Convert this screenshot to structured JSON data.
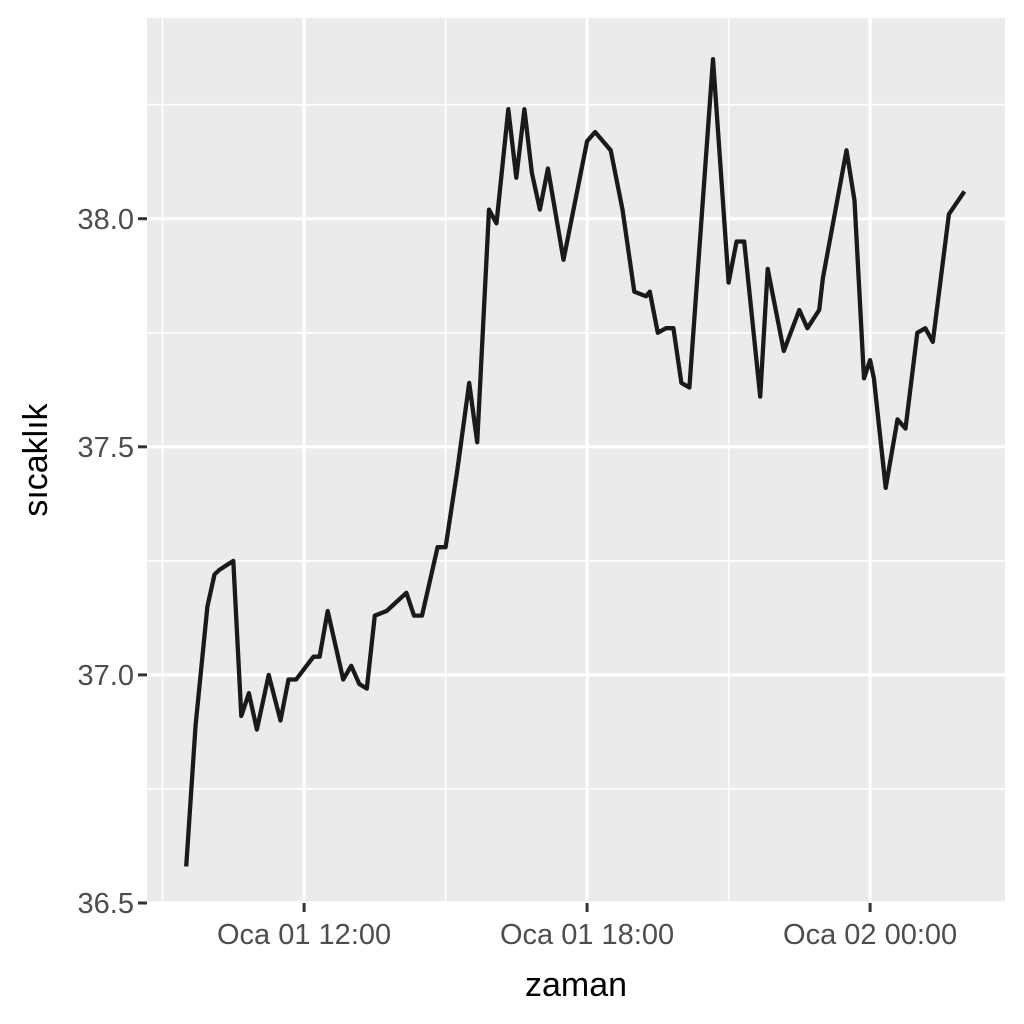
{
  "style": {
    "outer_bg": "#FFFFFF",
    "panel_bg": "#EBEBEB",
    "grid_color": "#FFFFFF",
    "line_color": "#1A1A1A",
    "tick_mark_color": "#333333",
    "tick_label_color": "#4D4D4D",
    "axis_title_color": "#000000"
  },
  "chart_data": {
    "type": "line",
    "title": "",
    "xlabel": "zaman",
    "ylabel": "sıcaklık",
    "legend": "none",
    "grid": "major+minor",
    "x_axis": {
      "time_origin": "Oca 01 00:00",
      "tick_labels": [
        "Oca 01 12:00",
        "Oca 01 18:00",
        "Oca 02 00:00"
      ],
      "tick_hours": [
        12,
        18,
        24
      ],
      "minor_tick_hours": [
        9,
        15,
        21
      ],
      "range_hours": [
        8.67,
        26.86
      ]
    },
    "y_axis": {
      "tick_labels": [
        "36.5",
        "37.0",
        "37.5",
        "38.0"
      ],
      "tick_values": [
        36.5,
        37.0,
        37.5,
        38.0
      ],
      "minor_tick_values": [
        36.75,
        37.25,
        37.75,
        38.25
      ],
      "range": [
        36.5,
        38.44
      ]
    },
    "series": [
      {
        "name": "sıcaklık",
        "color": "#1A1A1A",
        "points_hour_value": [
          [
            9.5,
            36.58
          ],
          [
            9.7,
            36.89
          ],
          [
            9.95,
            37.15
          ],
          [
            10.1,
            37.22
          ],
          [
            10.2,
            37.23
          ],
          [
            10.35,
            37.24
          ],
          [
            10.5,
            37.25
          ],
          [
            10.67,
            36.91
          ],
          [
            10.83,
            36.96
          ],
          [
            11.0,
            36.88
          ],
          [
            11.25,
            37.0
          ],
          [
            11.5,
            36.9
          ],
          [
            11.67,
            36.99
          ],
          [
            11.83,
            36.99
          ],
          [
            12.2,
            37.04
          ],
          [
            12.33,
            37.04
          ],
          [
            12.5,
            37.14
          ],
          [
            12.83,
            36.99
          ],
          [
            13.0,
            37.02
          ],
          [
            13.17,
            36.98
          ],
          [
            13.33,
            36.97
          ],
          [
            13.5,
            37.13
          ],
          [
            13.75,
            37.14
          ],
          [
            14.17,
            37.18
          ],
          [
            14.33,
            37.13
          ],
          [
            14.5,
            37.13
          ],
          [
            14.83,
            37.28
          ],
          [
            15.0,
            37.28
          ],
          [
            15.25,
            37.45
          ],
          [
            15.5,
            37.64
          ],
          [
            15.67,
            37.51
          ],
          [
            15.92,
            38.02
          ],
          [
            16.08,
            37.99
          ],
          [
            16.33,
            38.24
          ],
          [
            16.5,
            38.09
          ],
          [
            16.67,
            38.24
          ],
          [
            16.83,
            38.1
          ],
          [
            17.0,
            38.02
          ],
          [
            17.17,
            38.11
          ],
          [
            17.5,
            37.91
          ],
          [
            18.0,
            38.17
          ],
          [
            18.17,
            38.19
          ],
          [
            18.5,
            38.15
          ],
          [
            18.75,
            38.02
          ],
          [
            19.0,
            37.84
          ],
          [
            19.25,
            37.83
          ],
          [
            19.33,
            37.84
          ],
          [
            19.5,
            37.75
          ],
          [
            19.67,
            37.76
          ],
          [
            19.83,
            37.76
          ],
          [
            20.0,
            37.64
          ],
          [
            20.17,
            37.63
          ],
          [
            20.67,
            38.35
          ],
          [
            21.0,
            37.86
          ],
          [
            21.17,
            37.95
          ],
          [
            21.33,
            37.95
          ],
          [
            21.67,
            37.61
          ],
          [
            21.83,
            37.89
          ],
          [
            22.17,
            37.71
          ],
          [
            22.5,
            37.8
          ],
          [
            22.67,
            37.76
          ],
          [
            22.92,
            37.8
          ],
          [
            23.0,
            37.87
          ],
          [
            23.5,
            38.15
          ],
          [
            23.67,
            38.04
          ],
          [
            23.87,
            37.65
          ],
          [
            24.0,
            37.69
          ],
          [
            24.08,
            37.65
          ],
          [
            24.33,
            37.41
          ],
          [
            24.58,
            37.56
          ],
          [
            24.75,
            37.54
          ],
          [
            25.0,
            37.75
          ],
          [
            25.17,
            37.76
          ],
          [
            25.33,
            37.73
          ],
          [
            25.67,
            38.01
          ],
          [
            26.0,
            38.06
          ]
        ]
      }
    ]
  }
}
